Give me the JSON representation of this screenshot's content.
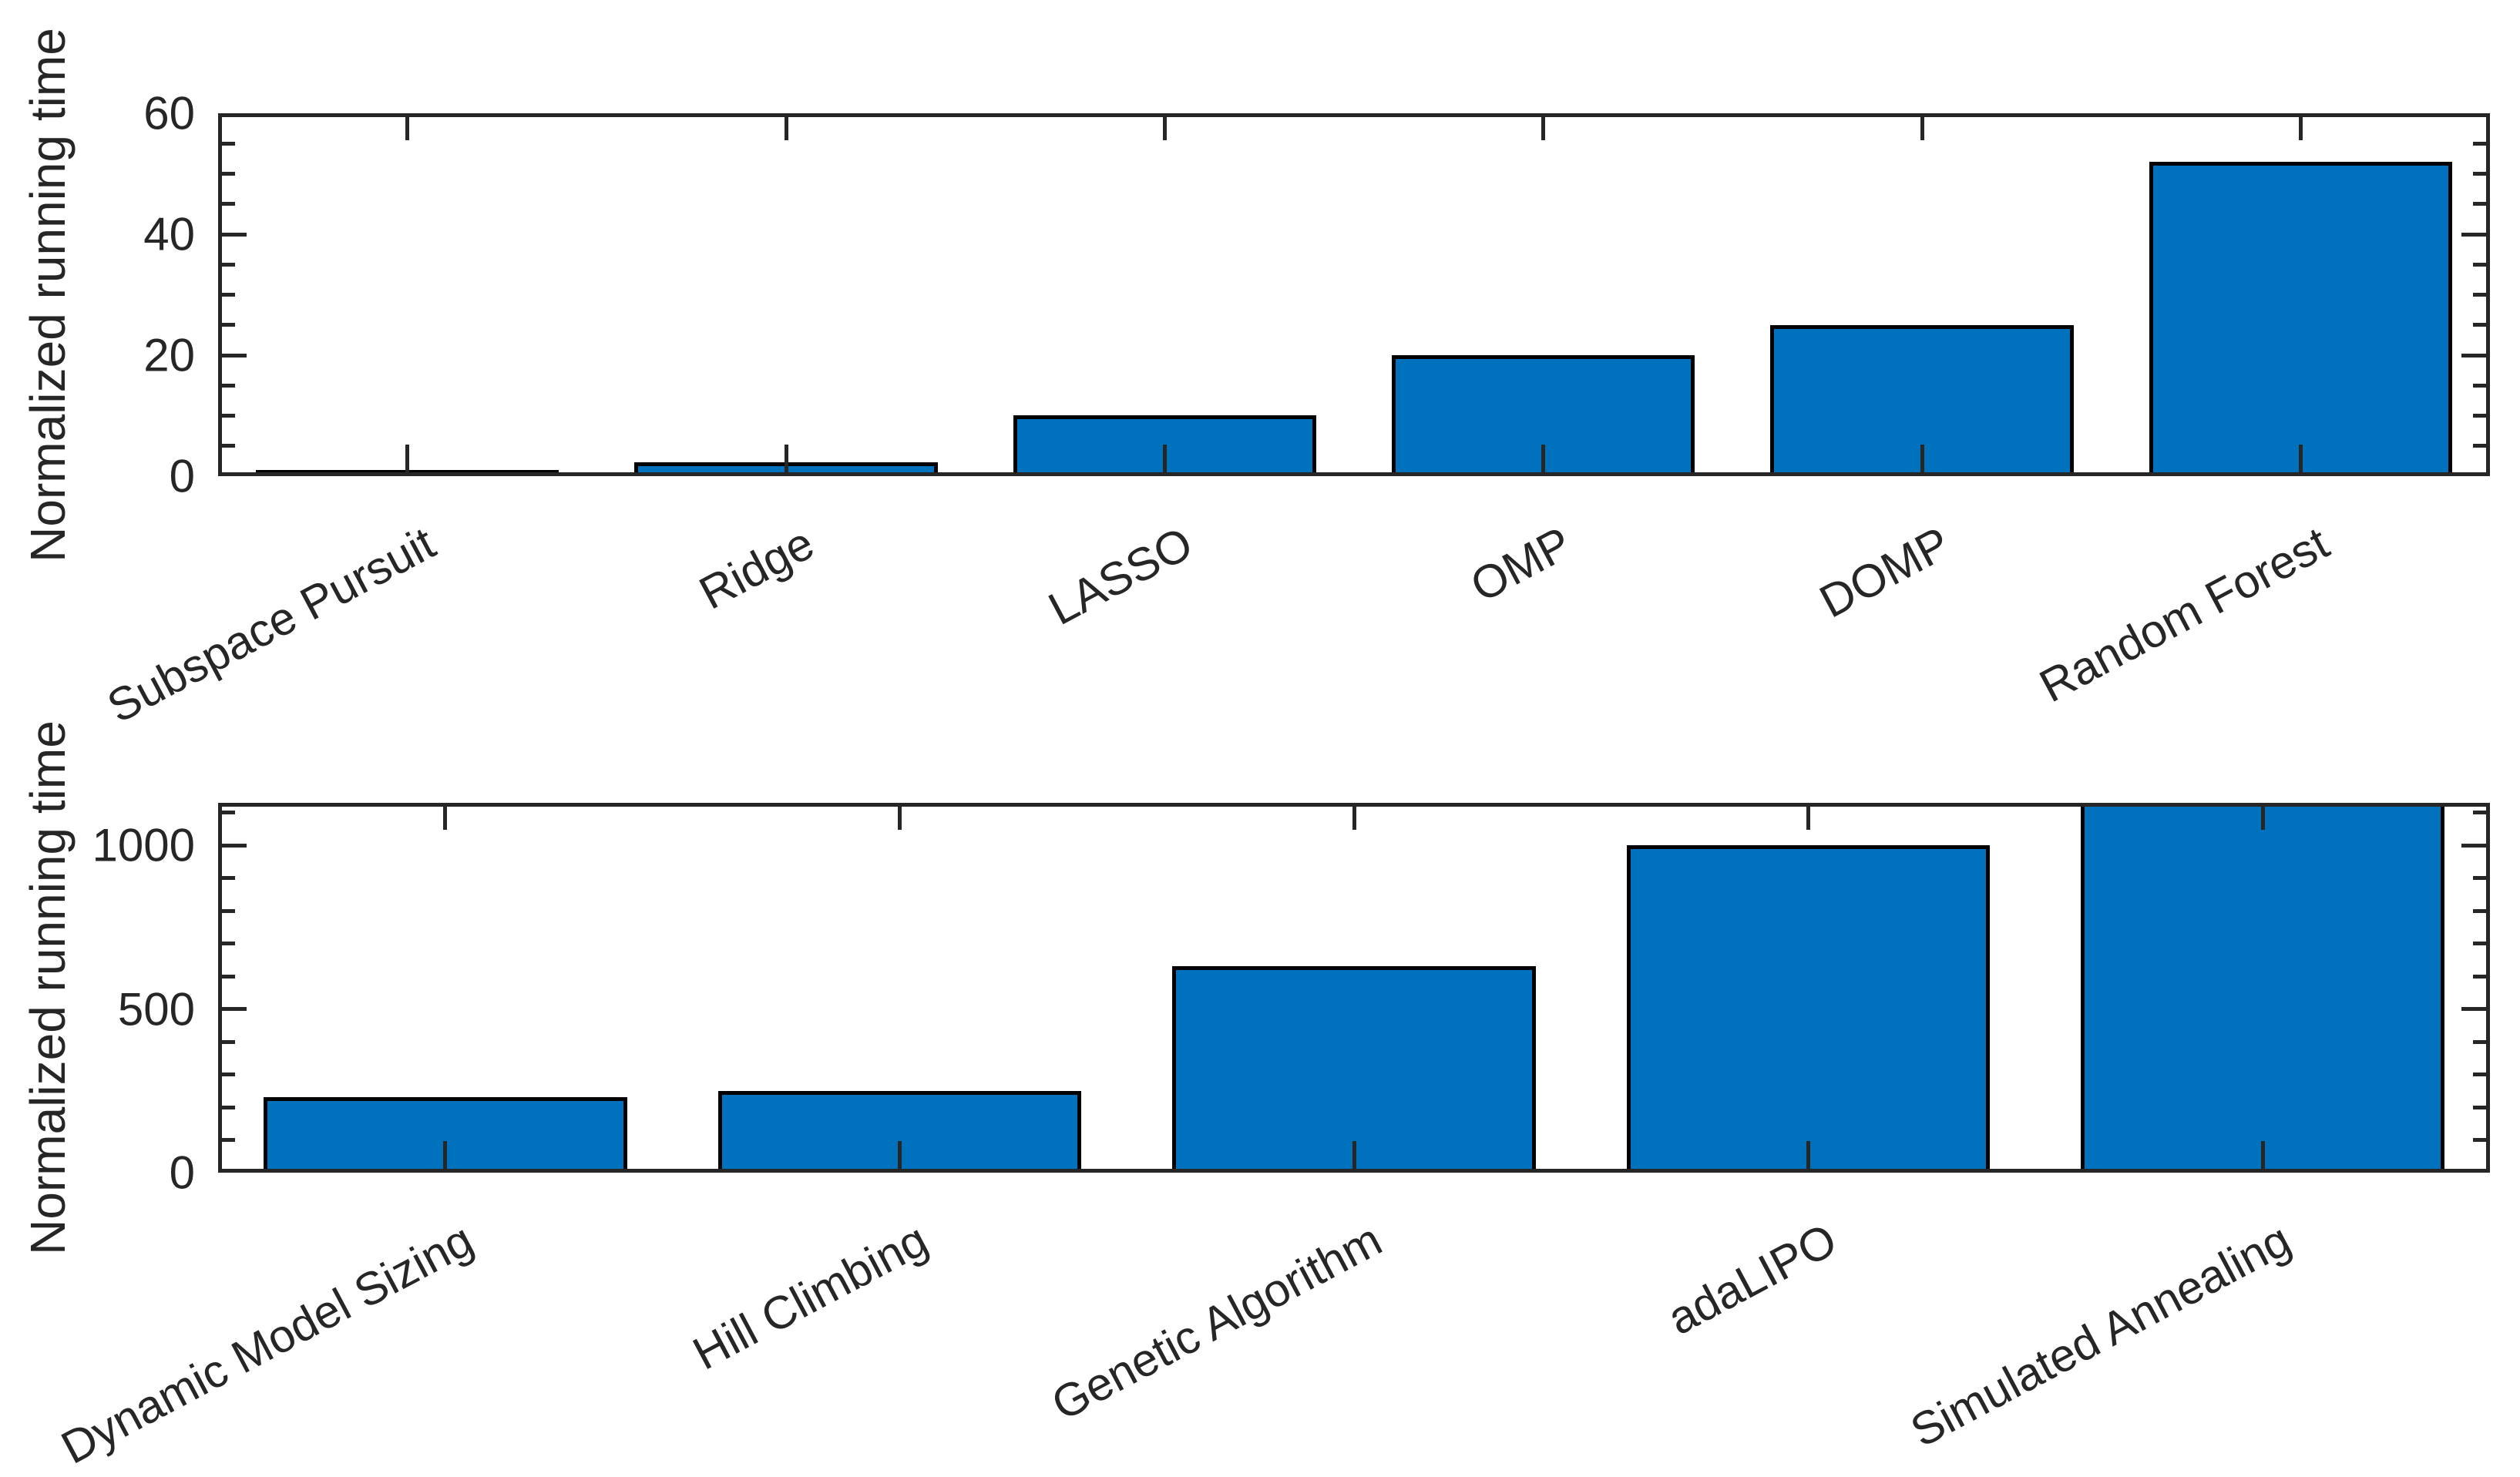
{
  "figure": {
    "background": "#ffffff",
    "axis_color": "#262626",
    "bar_fill_color": "#0072BD",
    "bar_edge_color": "#000000"
  },
  "chart_data": [
    {
      "type": "bar",
      "title": "",
      "xlabel": "",
      "ylabel": "Normalized running time",
      "categories": [
        "Subspace Pursuit",
        "Ridge",
        "LASSO",
        "OMP",
        "DOMP",
        "Random Forest"
      ],
      "values": [
        1,
        2.3,
        10,
        20,
        25,
        52
      ],
      "ylim": [
        0,
        60
      ],
      "yticks": [
        0,
        20,
        40,
        60
      ],
      "ytick_labels": [
        "0",
        "20",
        "40",
        "60"
      ],
      "minor_tick_step": 5,
      "grid": false,
      "legend": null,
      "xticklabel_rotation_deg": 28,
      "bar_width_fraction": 0.8
    },
    {
      "type": "bar",
      "title": "",
      "xlabel": "",
      "ylabel": "Normalized running time",
      "categories": [
        "Dynamic Model Sizing",
        "Hill Climbing",
        "Genetic Algorithm",
        "adaLIPO",
        "Simulated Annealing"
      ],
      "values": [
        230,
        250,
        630,
        1000,
        1130
      ],
      "ylim": [
        0,
        1130
      ],
      "yticks": [
        0,
        500,
        1000
      ],
      "ytick_labels": [
        "0",
        "500",
        "1000"
      ],
      "minor_tick_step": 100,
      "grid": false,
      "legend": null,
      "xticklabel_rotation_deg": 28,
      "bar_width_fraction": 0.8
    }
  ]
}
